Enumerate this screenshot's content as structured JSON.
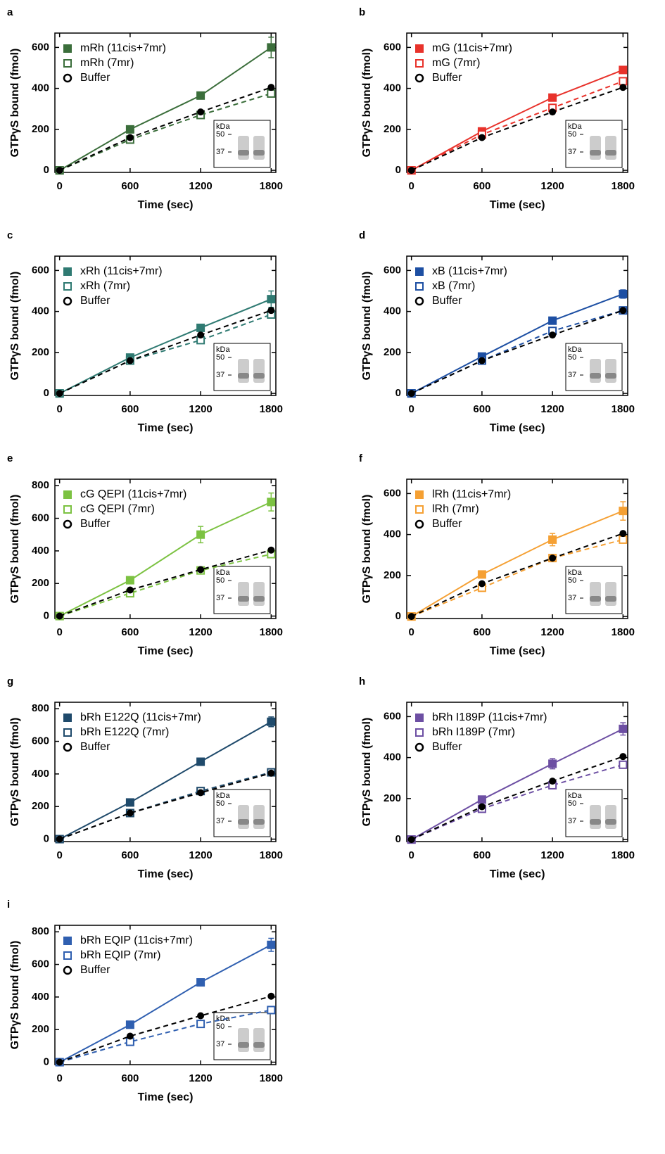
{
  "chart_data": [
    {
      "type": "line",
      "panel": "a",
      "x": [
        0,
        600,
        1200,
        1800
      ],
      "xlim": [
        -40,
        1840
      ],
      "xticks": [
        0,
        600,
        1200,
        1800
      ],
      "ylim": [
        -10,
        670
      ],
      "yticks": [
        0,
        200,
        400,
        600
      ],
      "xlabel": "Time (sec)",
      "ylabel": "GTPγS bound (fmol)",
      "inset": {
        "unit": "kDa",
        "markers": [
          "50",
          "37"
        ]
      },
      "series": [
        {
          "name": "mRh (11cis+7mr)",
          "color": "#3b6e3b",
          "values": [
            0,
            200,
            365,
            600
          ],
          "errors": [
            5,
            10,
            12,
            50
          ]
        },
        {
          "name": "mRh (7mr)",
          "color": "#3b6e3b",
          "values": [
            0,
            150,
            270,
            375
          ]
        },
        {
          "name": "Buffer",
          "color": "#000000",
          "values": [
            0,
            160,
            285,
            405
          ]
        }
      ]
    },
    {
      "type": "line",
      "panel": "b",
      "x": [
        0,
        600,
        1200,
        1800
      ],
      "xlim": [
        -40,
        1840
      ],
      "xticks": [
        0,
        600,
        1200,
        1800
      ],
      "ylim": [
        -10,
        670
      ],
      "yticks": [
        0,
        200,
        400,
        600
      ],
      "xlabel": "Time (sec)",
      "ylabel": "GTPγS bound (fmol)",
      "inset": {
        "unit": "kDa",
        "markers": [
          "50",
          "37"
        ]
      },
      "series": [
        {
          "name": "mG (11cis+7mr)",
          "color": "#e8322b",
          "values": [
            0,
            190,
            355,
            490
          ],
          "errors": [
            5,
            10,
            12,
            15
          ]
        },
        {
          "name": "mG (7mr)",
          "color": "#e8322b",
          "values": [
            0,
            175,
            305,
            435
          ]
        },
        {
          "name": "Buffer",
          "color": "#000000",
          "values": [
            0,
            160,
            285,
            405
          ]
        }
      ]
    },
    {
      "type": "line",
      "panel": "c",
      "x": [
        0,
        600,
        1200,
        1800
      ],
      "xlim": [
        -40,
        1840
      ],
      "xticks": [
        0,
        600,
        1200,
        1800
      ],
      "ylim": [
        -10,
        670
      ],
      "yticks": [
        0,
        200,
        400,
        600
      ],
      "xlabel": "Time (sec)",
      "ylabel": "GTPγS bound (fmol)",
      "inset": {
        "unit": "kDa",
        "markers": [
          "50",
          "37"
        ]
      },
      "series": [
        {
          "name": "xRh (11cis+7mr)",
          "color": "#2f7a72",
          "values": [
            0,
            175,
            320,
            460
          ],
          "errors": [
            5,
            10,
            12,
            40
          ]
        },
        {
          "name": "xRh (7mr)",
          "color": "#2f7a72",
          "values": [
            0,
            160,
            260,
            385
          ]
        },
        {
          "name": "Buffer",
          "color": "#000000",
          "values": [
            0,
            160,
            285,
            405
          ]
        }
      ]
    },
    {
      "type": "line",
      "panel": "d",
      "x": [
        0,
        600,
        1200,
        1800
      ],
      "xlim": [
        -40,
        1840
      ],
      "xticks": [
        0,
        600,
        1200,
        1800
      ],
      "ylim": [
        -10,
        670
      ],
      "yticks": [
        0,
        200,
        400,
        600
      ],
      "xlabel": "Time (sec)",
      "ylabel": "GTPγS bound (fmol)",
      "inset": {
        "unit": "kDa",
        "markers": [
          "50",
          "37"
        ]
      },
      "series": [
        {
          "name": "xB (11cis+7mr)",
          "color": "#1d4fa3",
          "values": [
            0,
            180,
            355,
            485
          ],
          "errors": [
            5,
            10,
            12,
            20
          ]
        },
        {
          "name": "xB (7mr)",
          "color": "#1d4fa3",
          "values": [
            0,
            160,
            305,
            405
          ]
        },
        {
          "name": "Buffer",
          "color": "#000000",
          "values": [
            0,
            160,
            285,
            405
          ]
        }
      ]
    },
    {
      "type": "line",
      "panel": "e",
      "x": [
        0,
        600,
        1200,
        1800
      ],
      "xlim": [
        -40,
        1840
      ],
      "xticks": [
        0,
        600,
        1200,
        1800
      ],
      "ylim": [
        -15,
        840
      ],
      "yticks": [
        0,
        200,
        400,
        600,
        800
      ],
      "xlabel": "Time (sec)",
      "ylabel": "GTPγS bound (fmol)",
      "inset": {
        "unit": "kDa",
        "markers": [
          "50",
          "37"
        ]
      },
      "series": [
        {
          "name": "cG QEPI (11cis+7mr)",
          "color": "#7cc242",
          "values": [
            0,
            220,
            500,
            700
          ],
          "errors": [
            5,
            15,
            50,
            55
          ]
        },
        {
          "name": "cG QEPI (7mr)",
          "color": "#7cc242",
          "values": [
            0,
            140,
            280,
            380
          ]
        },
        {
          "name": "Buffer",
          "color": "#000000",
          "values": [
            0,
            160,
            285,
            405
          ]
        }
      ]
    },
    {
      "type": "line",
      "panel": "f",
      "x": [
        0,
        600,
        1200,
        1800
      ],
      "xlim": [
        -40,
        1840
      ],
      "xticks": [
        0,
        600,
        1200,
        1800
      ],
      "ylim": [
        -10,
        670
      ],
      "yticks": [
        0,
        200,
        400,
        600
      ],
      "xlabel": "Time (sec)",
      "ylabel": "GTPγS bound (fmol)",
      "inset": {
        "unit": "kDa",
        "markers": [
          "50",
          "37"
        ]
      },
      "series": [
        {
          "name": "lRh (11cis+7mr)",
          "color": "#f5a033",
          "values": [
            0,
            205,
            375,
            515
          ],
          "errors": [
            5,
            10,
            30,
            45
          ]
        },
        {
          "name": "lRh (7mr)",
          "color": "#f5a033",
          "values": [
            0,
            140,
            285,
            375
          ]
        },
        {
          "name": "Buffer",
          "color": "#000000",
          "values": [
            0,
            160,
            285,
            405
          ]
        }
      ]
    },
    {
      "type": "line",
      "panel": "g",
      "x": [
        0,
        600,
        1200,
        1800
      ],
      "xlim": [
        -40,
        1840
      ],
      "xticks": [
        0,
        600,
        1200,
        1800
      ],
      "ylim": [
        -15,
        840
      ],
      "yticks": [
        0,
        200,
        400,
        600,
        800
      ],
      "xlabel": "Time (sec)",
      "ylabel": "GTPγS bound (fmol)",
      "inset": {
        "unit": "kDa",
        "markers": [
          "50",
          "37"
        ]
      },
      "series": [
        {
          "name": "bRh E122Q (11cis+7mr)",
          "color": "#1f4a6b",
          "values": [
            0,
            225,
            475,
            720
          ],
          "errors": [
            5,
            10,
            20,
            30
          ]
        },
        {
          "name": "bRh E122Q (7mr)",
          "color": "#1f4a6b",
          "values": [
            0,
            160,
            295,
            410
          ]
        },
        {
          "name": "Buffer",
          "color": "#000000",
          "values": [
            0,
            160,
            285,
            405
          ]
        }
      ]
    },
    {
      "type": "line",
      "panel": "h",
      "x": [
        0,
        600,
        1200,
        1800
      ],
      "xlim": [
        -40,
        1840
      ],
      "xticks": [
        0,
        600,
        1200,
        1800
      ],
      "ylim": [
        -10,
        670
      ],
      "yticks": [
        0,
        200,
        400,
        600
      ],
      "xlabel": "Time (sec)",
      "ylabel": "GTPγS bound (fmol)",
      "inset": {
        "unit": "kDa",
        "markers": [
          "50",
          "37"
        ]
      },
      "series": [
        {
          "name": "bRh I189P (11cis+7mr)",
          "color": "#6d4fa3",
          "values": [
            0,
            195,
            370,
            540
          ],
          "errors": [
            5,
            10,
            25,
            30
          ]
        },
        {
          "name": "bRh I189P (7mr)",
          "color": "#6d4fa3",
          "values": [
            0,
            150,
            265,
            365
          ]
        },
        {
          "name": "Buffer",
          "color": "#000000",
          "values": [
            0,
            160,
            285,
            405
          ]
        }
      ]
    },
    {
      "type": "line",
      "panel": "i",
      "x": [
        0,
        600,
        1200,
        1800
      ],
      "xlim": [
        -40,
        1840
      ],
      "xticks": [
        0,
        600,
        1200,
        1800
      ],
      "ylim": [
        -15,
        840
      ],
      "yticks": [
        0,
        200,
        400,
        600,
        800
      ],
      "xlabel": "Time (sec)",
      "ylabel": "GTPγS bound (fmol)",
      "inset": {
        "unit": "kDa",
        "markers": [
          "50",
          "37"
        ]
      },
      "series": [
        {
          "name": "bRh EQIP (11cis+7mr)",
          "color": "#2f5fb0",
          "values": [
            0,
            230,
            490,
            720
          ],
          "errors": [
            5,
            15,
            15,
            40
          ]
        },
        {
          "name": "bRh EQIP (7mr)",
          "color": "#2f5fb0",
          "values": [
            0,
            125,
            235,
            320
          ]
        },
        {
          "name": "Buffer",
          "color": "#000000",
          "values": [
            0,
            160,
            285,
            405
          ]
        }
      ]
    }
  ]
}
